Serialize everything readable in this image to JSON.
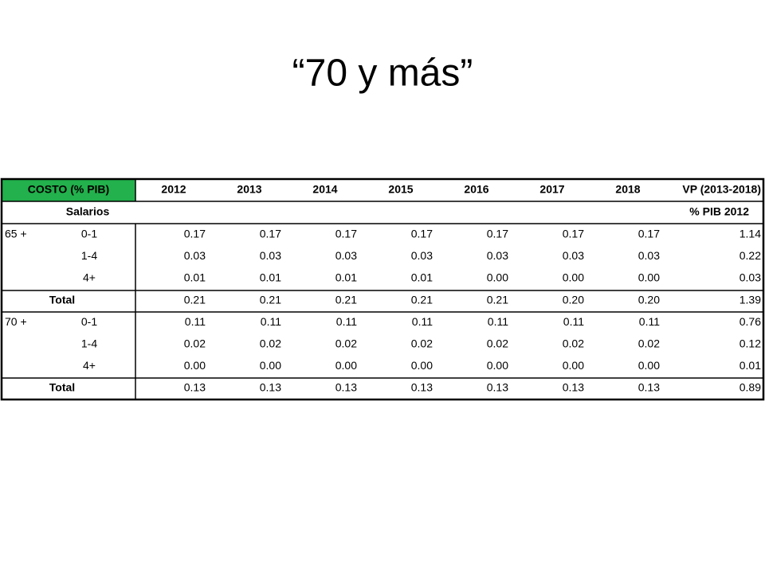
{
  "title": "“70 y más”",
  "table": {
    "header": [
      "COSTO (% PIB)",
      "2012",
      "2013",
      "2014",
      "2015",
      "2016",
      "2017",
      "2018",
      "VP (2013-2018)"
    ],
    "subheader": [
      "Salarios",
      "% PIB 2012"
    ],
    "groups": [
      {
        "label": "65 +",
        "rows": [
          {
            "age": "0-1",
            "values": [
              "0.17",
              "0.17",
              "0.17",
              "0.17",
              "0.17",
              "0.17",
              "0.17",
              "1.14"
            ]
          },
          {
            "age": "1-4",
            "values": [
              "0.03",
              "0.03",
              "0.03",
              "0.03",
              "0.03",
              "0.03",
              "0.03",
              "0.22"
            ]
          },
          {
            "age": "4+",
            "values": [
              "0.01",
              "0.01",
              "0.01",
              "0.01",
              "0.00",
              "0.00",
              "0.00",
              "0.03"
            ]
          }
        ],
        "total": {
          "label": "Total",
          "values": [
            "0.21",
            "0.21",
            "0.21",
            "0.21",
            "0.21",
            "0.20",
            "0.20",
            "1.39"
          ]
        }
      },
      {
        "label": "70 +",
        "rows": [
          {
            "age": "0-1",
            "values": [
              "0.11",
              "0.11",
              "0.11",
              "0.11",
              "0.11",
              "0.11",
              "0.11",
              "0.76"
            ]
          },
          {
            "age": "1-4",
            "values": [
              "0.02",
              "0.02",
              "0.02",
              "0.02",
              "0.02",
              "0.02",
              "0.02",
              "0.12"
            ]
          },
          {
            "age": "4+",
            "values": [
              "0.00",
              "0.00",
              "0.00",
              "0.00",
              "0.00",
              "0.00",
              "0.00",
              "0.01"
            ]
          }
        ],
        "total": {
          "label": "Total",
          "values": [
            "0.13",
            "0.13",
            "0.13",
            "0.13",
            "0.13",
            "0.13",
            "0.13",
            "0.89"
          ]
        }
      }
    ]
  }
}
